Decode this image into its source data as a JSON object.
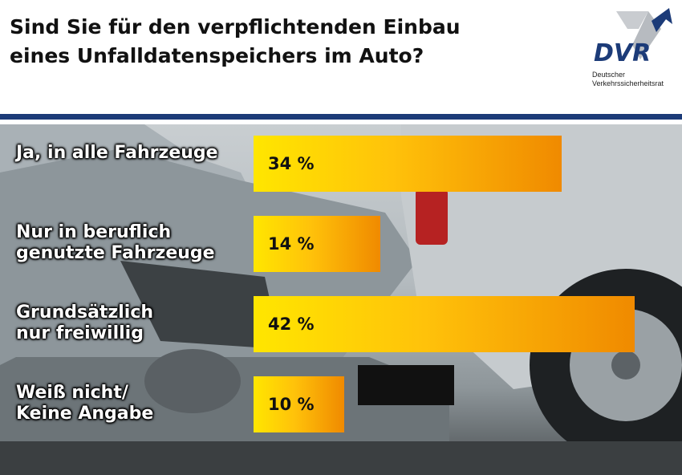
{
  "title": {
    "line1": "Sind Sie für den verpflichtenden Einbau",
    "line2": "eines Unfalldatenspeichers im Auto?"
  },
  "logo": {
    "mark": "DVR",
    "sub_line1": "Deutscher",
    "sub_line2": "Verkehrssicherheitsrat",
    "color": "#1c3b78"
  },
  "colors": {
    "rule": "#1c3b78",
    "bar_start": "#ffe600",
    "bar_end": "#f08a00"
  },
  "chart_data": {
    "type": "bar",
    "orientation": "horizontal",
    "categories": [
      [
        "Ja, in alle Fahrzeuge"
      ],
      [
        "Nur in beruflich",
        "genutzte Fahrzeuge"
      ],
      [
        "Grundsätzlich",
        "nur freiwillig"
      ],
      [
        "Weiß nicht/",
        "Keine Angabe"
      ]
    ],
    "values": [
      34,
      14,
      42,
      10
    ],
    "value_labels": [
      "34 %",
      "14 %",
      "42 %",
      "10 %"
    ],
    "unit": "%",
    "xlim": [
      0,
      43
    ],
    "grid": false,
    "legend": "none"
  }
}
